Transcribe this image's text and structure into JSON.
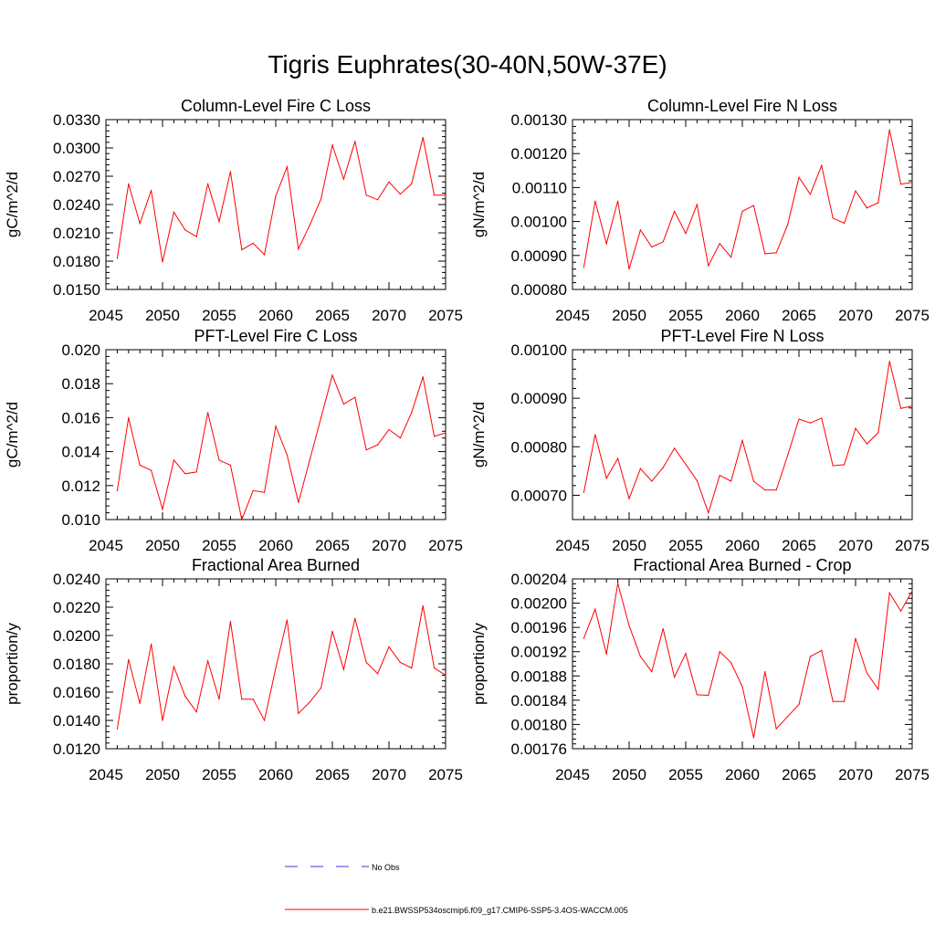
{
  "figure": {
    "title": "Tigris Euphrates(30-40N,50W-37E)",
    "legend": {
      "items": [
        {
          "label": "No Obs",
          "color": "#3b3bd9",
          "style": "dashed"
        },
        {
          "label": "b.e21.BWSSP534oscmip6.f09_g17.CMIP6-SSP5-3.4OS-WACCM.005",
          "color": "#ff0000",
          "style": "solid"
        }
      ]
    }
  },
  "chart_data": [
    {
      "type": "line",
      "title": "Column-Level Fire C Loss",
      "ylabel": "gC/m^2/d",
      "xlim": [
        2045,
        2075
      ],
      "ylim": [
        0.015,
        0.033
      ],
      "yticks": [
        "0.0150",
        "0.0180",
        "0.0210",
        "0.0240",
        "0.0270",
        "0.0300",
        "0.0330"
      ],
      "xticks": [
        "2045",
        "2050",
        "2055",
        "2060",
        "2065",
        "2070",
        "2075"
      ],
      "color": "#ff0000",
      "x": [
        2046,
        2047,
        2048,
        2049,
        2050,
        2051,
        2052,
        2053,
        2054,
        2055,
        2056,
        2057,
        2058,
        2059,
        2060,
        2061,
        2062,
        2063,
        2064,
        2065,
        2066,
        2067,
        2068,
        2069,
        2070,
        2071,
        2072,
        2073,
        2074,
        2075
      ],
      "values": [
        0.0183,
        0.0262,
        0.022,
        0.0255,
        0.0179,
        0.0232,
        0.0213,
        0.0206,
        0.0262,
        0.0222,
        0.0275,
        0.0192,
        0.0199,
        0.0187,
        0.0249,
        0.028,
        0.0193,
        0.0218,
        0.0246,
        0.0303,
        0.0267,
        0.0307,
        0.025,
        0.0245,
        0.0264,
        0.0251,
        0.0262,
        0.0311,
        0.025,
        0.025
      ]
    },
    {
      "type": "line",
      "title": "Column-Level Fire N Loss",
      "ylabel": "gN/m^2/d",
      "xlim": [
        2045,
        2075
      ],
      "ylim": [
        0.0008,
        0.0013
      ],
      "yticks": [
        "0.00080",
        "0.00090",
        "0.00100",
        "0.00110",
        "0.00120",
        "0.00130"
      ],
      "xticks": [
        "2045",
        "2050",
        "2055",
        "2060",
        "2065",
        "2070",
        "2075"
      ],
      "color": "#ff0000",
      "x": [
        2046,
        2047,
        2048,
        2049,
        2050,
        2051,
        2052,
        2053,
        2054,
        2055,
        2056,
        2057,
        2058,
        2059,
        2060,
        2061,
        2062,
        2063,
        2064,
        2065,
        2066,
        2067,
        2068,
        2069,
        2070,
        2071,
        2072,
        2073,
        2074,
        2075
      ],
      "values": [
        0.000865,
        0.00106,
        0.000935,
        0.00106,
        0.00086,
        0.000975,
        0.000925,
        0.00094,
        0.00103,
        0.000965,
        0.00105,
        0.00087,
        0.000935,
        0.000895,
        0.00103,
        0.001047,
        0.000905,
        0.000908,
        0.00099,
        0.00113,
        0.00108,
        0.001165,
        0.00101,
        0.000995,
        0.00109,
        0.00104,
        0.001055,
        0.00127,
        0.00111,
        0.001115
      ]
    },
    {
      "type": "line",
      "title": "PFT-Level Fire C Loss",
      "ylabel": "gC/m^2/d",
      "xlim": [
        2045,
        2075
      ],
      "ylim": [
        0.01,
        0.02
      ],
      "yticks": [
        "0.010",
        "0.012",
        "0.014",
        "0.016",
        "0.018",
        "0.020"
      ],
      "xticks": [
        "2045",
        "2050",
        "2055",
        "2060",
        "2065",
        "2070",
        "2075"
      ],
      "color": "#ff0000",
      "x": [
        2046,
        2047,
        2048,
        2049,
        2050,
        2051,
        2052,
        2053,
        2054,
        2055,
        2056,
        2057,
        2058,
        2059,
        2060,
        2061,
        2062,
        2063,
        2064,
        2065,
        2066,
        2067,
        2068,
        2069,
        2070,
        2071,
        2072,
        2073,
        2074,
        2075
      ],
      "values": [
        0.0117,
        0.016,
        0.0132,
        0.0129,
        0.0106,
        0.0135,
        0.0127,
        0.0128,
        0.0163,
        0.0135,
        0.0132,
        0.01,
        0.0117,
        0.0116,
        0.0155,
        0.0138,
        0.011,
        0.0135,
        0.016,
        0.0185,
        0.0168,
        0.0172,
        0.0141,
        0.0144,
        0.0153,
        0.0148,
        0.0163,
        0.0184,
        0.0149,
        0.0151
      ]
    },
    {
      "type": "line",
      "title": "PFT-Level Fire N Loss",
      "ylabel": "gN/m^2/d",
      "xlim": [
        2045,
        2075
      ],
      "ylim": [
        0.00065,
        0.001
      ],
      "yticks": [
        "0.00070",
        "0.00080",
        "0.00090",
        "0.00100"
      ],
      "xticks": [
        "2045",
        "2050",
        "2055",
        "2060",
        "2065",
        "2070",
        "2075"
      ],
      "color": "#ff0000",
      "x": [
        2046,
        2047,
        2048,
        2049,
        2050,
        2051,
        2052,
        2053,
        2054,
        2055,
        2056,
        2057,
        2058,
        2059,
        2060,
        2061,
        2062,
        2063,
        2064,
        2065,
        2066,
        2067,
        2068,
        2069,
        2070,
        2071,
        2072,
        2073,
        2074,
        2075
      ],
      "values": [
        0.000706,
        0.000825,
        0.000735,
        0.000776,
        0.000693,
        0.000755,
        0.000729,
        0.000757,
        0.000797,
        0.000764,
        0.00073,
        0.000664,
        0.000741,
        0.000729,
        0.000813,
        0.000729,
        0.000711,
        0.000711,
        0.000782,
        0.000857,
        0.000849,
        0.000859,
        0.000761,
        0.000763,
        0.000838,
        0.000806,
        0.000829,
        0.000976,
        0.000879,
        0.000884
      ]
    },
    {
      "type": "line",
      "title": "Fractional Area Burned",
      "ylabel": "proportion/y",
      "xlim": [
        2045,
        2075
      ],
      "ylim": [
        0.012,
        0.024
      ],
      "yticks": [
        "0.0120",
        "0.0140",
        "0.0160",
        "0.0180",
        "0.0200",
        "0.0220",
        "0.0240"
      ],
      "xticks": [
        "2045",
        "2050",
        "2055",
        "2060",
        "2065",
        "2070",
        "2075"
      ],
      "color": "#ff0000",
      "x": [
        2046,
        2047,
        2048,
        2049,
        2050,
        2051,
        2052,
        2053,
        2054,
        2055,
        2056,
        2057,
        2058,
        2059,
        2060,
        2061,
        2062,
        2063,
        2064,
        2065,
        2066,
        2067,
        2068,
        2069,
        2070,
        2071,
        2072,
        2073,
        2074,
        2075
      ],
      "values": [
        0.0134,
        0.0183,
        0.0152,
        0.0194,
        0.014,
        0.0178,
        0.0157,
        0.0146,
        0.0182,
        0.0155,
        0.021,
        0.0155,
        0.0155,
        0.014,
        0.0177,
        0.0211,
        0.0145,
        0.0153,
        0.0163,
        0.0203,
        0.0176,
        0.0212,
        0.0181,
        0.0173,
        0.0192,
        0.0181,
        0.0177,
        0.0221,
        0.0177,
        0.0172
      ]
    },
    {
      "type": "line",
      "title": "Fractional Area Burned - Crop",
      "ylabel": "proportion/y",
      "xlim": [
        2045,
        2075
      ],
      "ylim": [
        0.00176,
        0.00204
      ],
      "yticks": [
        "0.00176",
        "0.00180",
        "0.00184",
        "0.00188",
        "0.00192",
        "0.00196",
        "0.00200",
        "0.00204"
      ],
      "xticks": [
        "2045",
        "2050",
        "2055",
        "2060",
        "2065",
        "2070",
        "2075"
      ],
      "color": "#ff0000",
      "x": [
        2046,
        2047,
        2048,
        2049,
        2050,
        2051,
        2052,
        2053,
        2054,
        2055,
        2056,
        2057,
        2058,
        2059,
        2060,
        2061,
        2062,
        2063,
        2064,
        2065,
        2066,
        2067,
        2068,
        2069,
        2070,
        2071,
        2072,
        2073,
        2074,
        2075
      ],
      "values": [
        0.001942,
        0.00199,
        0.001916,
        0.002033,
        0.001963,
        0.001912,
        0.001887,
        0.001958,
        0.001878,
        0.001917,
        0.001849,
        0.001848,
        0.00192,
        0.001902,
        0.001862,
        0.001778,
        0.001887,
        0.001793,
        0.001813,
        0.001833,
        0.001912,
        0.001922,
        0.001838,
        0.001838,
        0.001942,
        0.001885,
        0.001858,
        0.002017,
        0.001987,
        0.00202
      ]
    }
  ]
}
